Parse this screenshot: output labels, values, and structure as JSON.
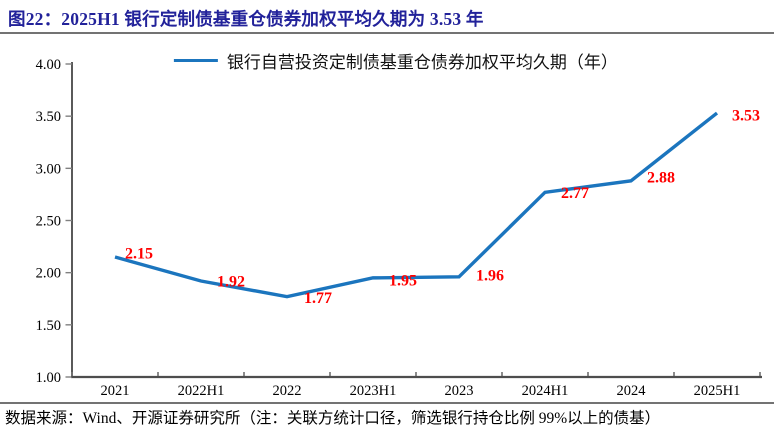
{
  "title": "图22：2025H1 银行定制债基重仓债券加权平均久期为 3.53 年",
  "footer": "数据来源：Wind、开源证券研究所（注：关联方统计口径，筛选银行持仓比例 99%以上的债基）",
  "colors": {
    "title_text": "#22229A",
    "series_line": "#1B75BE",
    "data_label": "#FF0000",
    "axis_line": "#4D4D4D",
    "tick_mark": "#808080",
    "divider": "#737373",
    "tick_label": "#000000"
  },
  "chart_data": {
    "type": "line",
    "title": "图22：2025H1 银行定制债基重仓债券加权平均久期为 3.53 年",
    "categories": [
      "2021",
      "2022H1",
      "2022",
      "2023H1",
      "2023",
      "2024H1",
      "2024",
      "2025H1"
    ],
    "series": [
      {
        "name": "银行自营投资定制债基重仓债券加权平均久期（年）",
        "values": [
          2.15,
          1.92,
          1.77,
          1.95,
          1.96,
          2.77,
          2.88,
          3.53
        ]
      }
    ],
    "data_labels": [
      "2.15",
      "1.92",
      "1.77",
      "1.95",
      "1.96",
      "2.77",
      "2.88",
      "3.53"
    ],
    "ylim": [
      1.0,
      4.0
    ],
    "ytick_step": 0.5,
    "yticks": [
      "4.00",
      "3.50",
      "3.00",
      "2.50",
      "2.00",
      "1.50",
      "1.00"
    ],
    "xlabel": "",
    "ylabel": "",
    "grid": false,
    "legend_position": "top-center",
    "source_note": "数据来源：Wind、开源证券研究所（注：关联方统计口径，筛选银行持仓比例 99%以上的债基）"
  }
}
